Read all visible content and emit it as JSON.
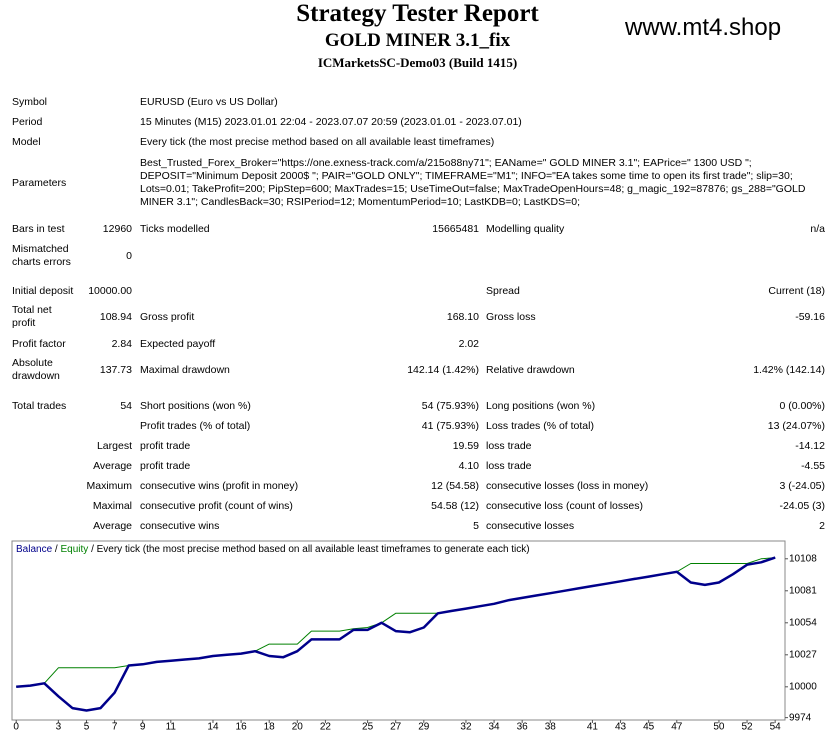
{
  "header": {
    "title": "Strategy Tester Report",
    "subtitle": "GOLD MINER 3.1_fix",
    "server": "ICMarketsSC-Demo03 (Build 1415)",
    "watermark": "www.mt4.shop"
  },
  "info": [
    [
      "Symbol",
      "EURUSD (Euro vs US Dollar)"
    ],
    [
      "Period",
      "15 Minutes (M15) 2023.01.01 22:04 - 2023.07.07 20:59 (2023.01.01 - 2023.07.01)"
    ],
    [
      "Model",
      "Every tick (the most precise method based on all available least timeframes)"
    ],
    [
      "Parameters",
      "Best_Trusted_Forex_Broker=\"https://one.exness-track.com/a/215o88ny71\"; EAName=\" GOLD MINER 3.1\"; EAPrice=\" 1300 USD \"; DEPOSIT=\"Minimum Deposit 2000$ \"; PAIR=\"GOLD ONLY\"; TIMEFRAME=\"M1\"; INFO=\"EA takes some time to open its first trade\"; slip=30; Lots=0.01; TakeProfit=200; PipStep=600; MaxTrades=15; UseTimeOut=false; MaxTradeOpenHours=48; g_magic_192=87876; gs_288=\"GOLD MINER 3.1\"; CandlesBack=30; RSIPeriod=12; MomentumPeriod=10; LastKDB=0; LastKDS=0;"
    ]
  ],
  "stats": [
    [
      "Bars in test",
      "12960",
      "Ticks modelled",
      "15665481",
      "Modelling quality",
      "n/a"
    ],
    [
      "Mismatched charts errors",
      "0",
      null,
      null,
      null,
      null
    ],
    [
      "Initial deposit",
      "10000.00",
      null,
      null,
      "Spread",
      "Current (18)"
    ],
    [
      "Total net profit",
      "108.94",
      "Gross profit",
      "168.10",
      "Gross loss",
      "-59.16"
    ],
    [
      "Profit factor",
      "2.84",
      "Expected payoff",
      "2.02",
      null,
      null
    ],
    [
      "Absolute drawdown",
      "137.73",
      "Maximal drawdown",
      "142.14 (1.42%)",
      "Relative drawdown",
      "1.42% (142.14)"
    ],
    [
      "Total trades",
      "54",
      "Short positions (won %)",
      "54 (75.93%)",
      "Long positions (won %)",
      "0 (0.00%)"
    ],
    [
      null,
      null,
      "Profit trades (% of total)",
      "41 (75.93%)",
      "Loss trades (% of total)",
      "13 (24.07%)"
    ],
    [
      "Largest",
      null,
      "profit trade",
      "19.59",
      "loss trade",
      "-14.12"
    ],
    [
      "Average",
      null,
      "profit trade",
      "4.10",
      "loss trade",
      "-4.55"
    ],
    [
      "Maximum",
      null,
      "consecutive wins (profit in money)",
      "12 (54.58)",
      "consecutive losses (loss in money)",
      "3 (-24.05)"
    ],
    [
      "Maximal",
      null,
      "consecutive profit (count of wins)",
      "54.58 (12)",
      "consecutive loss (count of losses)",
      "-24.05 (3)"
    ],
    [
      "Average",
      null,
      "consecutive wins",
      "5",
      "consecutive losses",
      "2"
    ]
  ],
  "chart_data": {
    "type": "line",
    "legend_separator": "/",
    "legend_note": "Every tick (the most precise method based on all available least timeframes to generate each tick)",
    "x": [
      0,
      1,
      2,
      3,
      4,
      5,
      6,
      7,
      8,
      9,
      10,
      11,
      12,
      13,
      14,
      15,
      16,
      17,
      18,
      19,
      20,
      21,
      22,
      23,
      24,
      25,
      26,
      27,
      28,
      29,
      30,
      31,
      32,
      33,
      34,
      35,
      36,
      37,
      38,
      39,
      40,
      41,
      42,
      43,
      44,
      45,
      46,
      47,
      48,
      49,
      50,
      51,
      52,
      53,
      54
    ],
    "series": [
      {
        "name": "Equity",
        "color": "#008000",
        "width": 1,
        "values": [
          10000,
          10001,
          10003,
          10016,
          10016,
          10016,
          10016,
          10016,
          10018,
          10019,
          10021,
          10022,
          10023,
          10024,
          10026,
          10027,
          10028,
          10030,
          10036,
          10036,
          10036,
          10047,
          10047,
          10047,
          10049,
          10050,
          10054,
          10062,
          10062,
          10062,
          10062,
          10064,
          10066,
          10068,
          10070,
          10073,
          10075,
          10077,
          10079,
          10081,
          10083,
          10085,
          10087,
          10089,
          10091,
          10093,
          10095,
          10097,
          10104,
          10104,
          10104,
          10104,
          10104,
          10108,
          10109
        ]
      },
      {
        "name": "Balance",
        "color": "#00008b",
        "width": 2.5,
        "values": [
          10000,
          10001,
          10003,
          9992,
          9982,
          9980,
          9982,
          9995,
          10018,
          10019,
          10021,
          10022,
          10023,
          10024,
          10026,
          10027,
          10028,
          10030,
          10026,
          10025,
          10030,
          10040,
          10040,
          10040,
          10048,
          10048,
          10054,
          10047,
          10046,
          10050,
          10062,
          10064,
          10066,
          10068,
          10070,
          10073,
          10075,
          10077,
          10079,
          10081,
          10083,
          10085,
          10087,
          10089,
          10091,
          10093,
          10095,
          10097,
          10088,
          10086,
          10088,
          10095,
          10103,
          10105,
          10109
        ]
      }
    ],
    "xlim": [
      -0.3,
      54.7
    ],
    "ylim": [
      9972,
      10123
    ],
    "xticks": [
      0,
      3,
      5,
      7,
      9,
      11,
      14,
      16,
      18,
      20,
      22,
      25,
      27,
      29,
      32,
      34,
      36,
      38,
      41,
      43,
      45,
      47,
      50,
      52,
      54
    ],
    "yticks": [
      9974,
      10000,
      10027,
      10054,
      10081,
      10108
    ],
    "grid": false
  }
}
